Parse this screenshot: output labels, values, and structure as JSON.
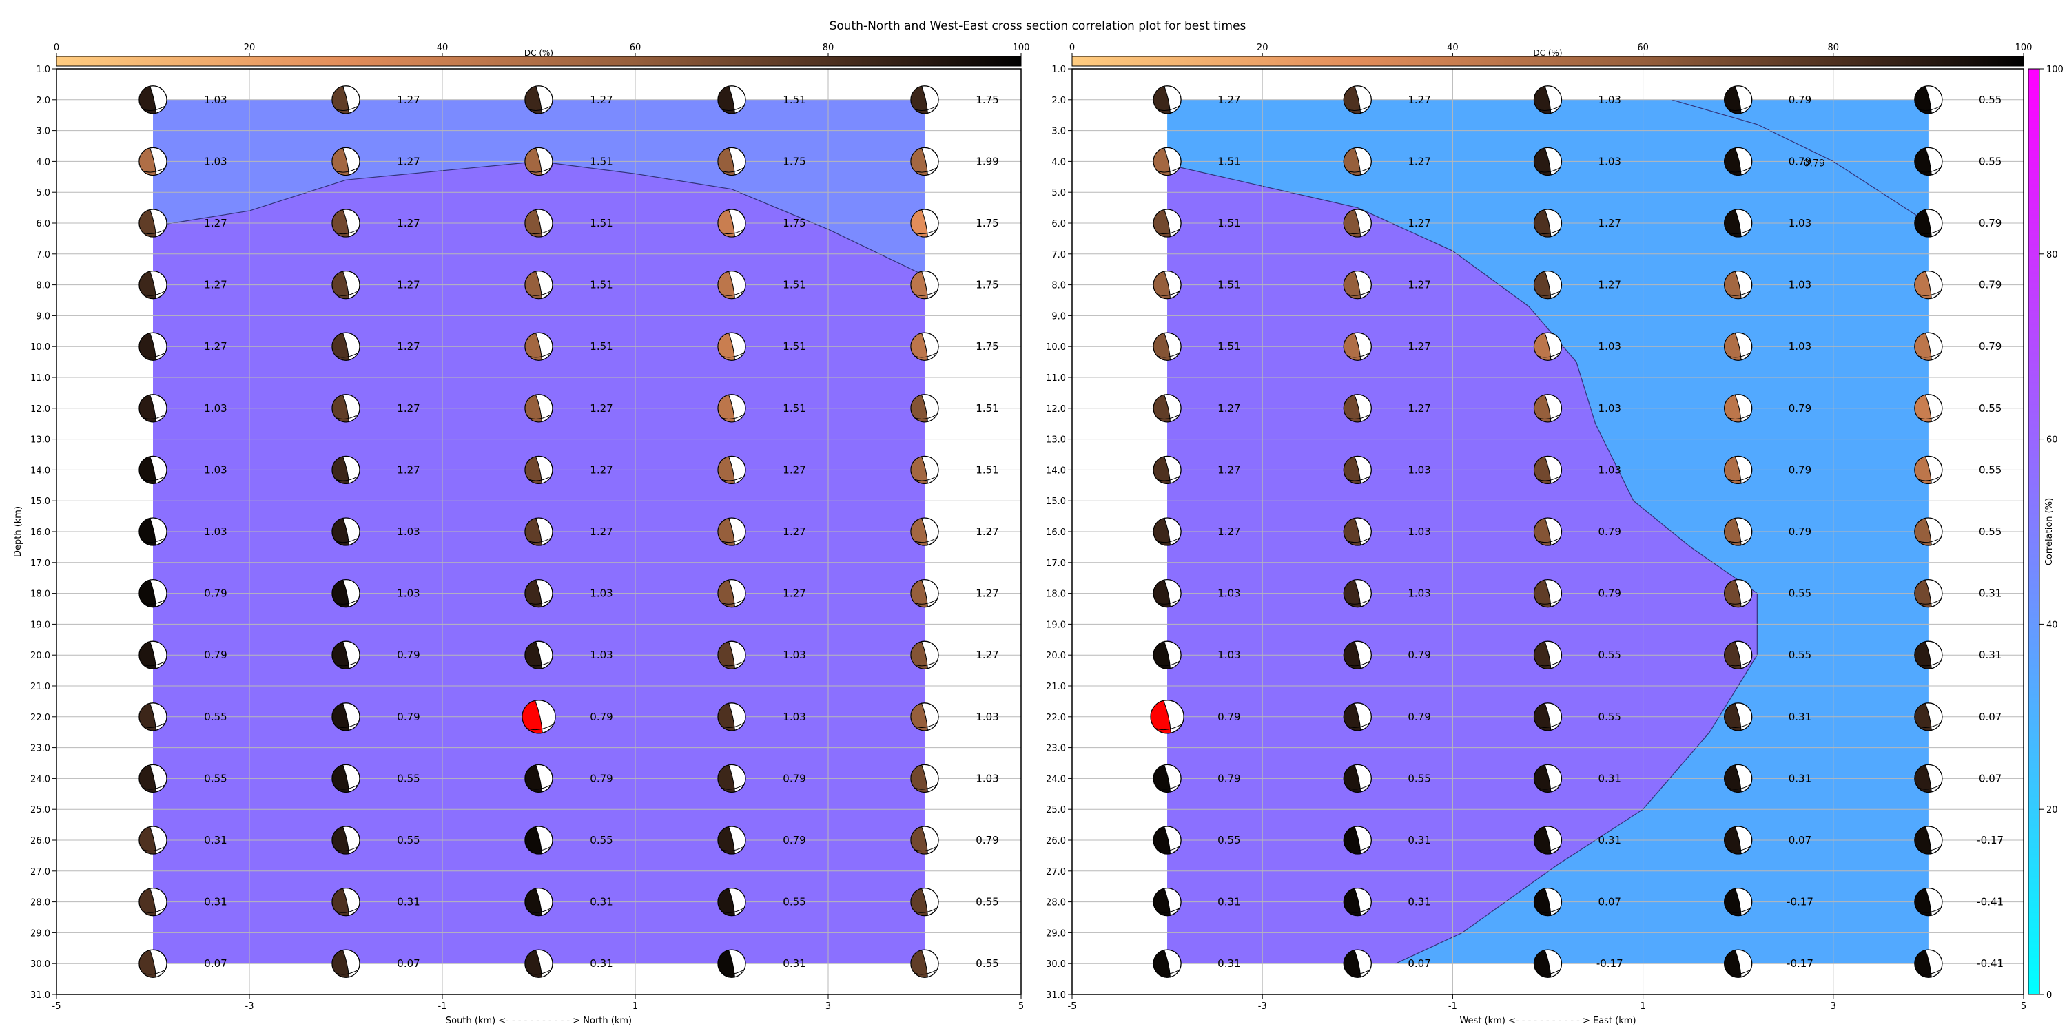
{
  "title": "South-North and West-East cross section correlation plot for best times",
  "colorbars": {
    "dc_label": "DC (%)",
    "dc_ticks": [
      "0",
      "20",
      "40",
      "60",
      "80",
      "100"
    ],
    "corr_label": "Correlation (%)",
    "corr_ticks": [
      "0",
      "20",
      "40",
      "60",
      "80",
      "100"
    ]
  },
  "colors": {
    "highlight_beachball": "#ff0000",
    "correlation_colormap": "cool",
    "dc_colormap": "copper_r"
  },
  "chart_data": [
    {
      "type": "heatmap",
      "panel": "south-north",
      "xlabel": "South (km) <- - - - - - - - - - - > North (km)",
      "ylabel": "Depth (km)",
      "xlim": [
        -5,
        5
      ],
      "ylim": [
        31,
        1
      ],
      "y_inverted": true,
      "x_ticks": [
        "-5",
        "-3",
        "-1",
        "1",
        "3",
        "5"
      ],
      "y_ticks": [
        "1.0",
        "2.0",
        "3.0",
        "4.0",
        "5.0",
        "6.0",
        "7.0",
        "8.0",
        "9.0",
        "10.0",
        "11.0",
        "12.0",
        "13.0",
        "14.0",
        "15.0",
        "16.0",
        "17.0",
        "18.0",
        "19.0",
        "20.0",
        "21.0",
        "22.0",
        "23.0",
        "24.0",
        "25.0",
        "26.0",
        "27.0",
        "28.0",
        "29.0",
        "30.0",
        "31.0"
      ],
      "grid": true,
      "x": [
        -4,
        -2,
        0,
        2,
        4
      ],
      "depths": [
        2,
        4,
        6,
        8,
        10,
        12,
        14,
        16,
        18,
        20,
        22,
        24,
        26,
        28,
        30
      ],
      "values": [
        [
          "1.03",
          "1.27",
          "1.27",
          "1.51",
          "1.75"
        ],
        [
          "1.03",
          "1.27",
          "1.51",
          "1.75",
          "1.99"
        ],
        [
          "1.27",
          "1.27",
          "1.51",
          "1.75",
          "1.75"
        ],
        [
          "1.27",
          "1.27",
          "1.51",
          "1.51",
          "1.75"
        ],
        [
          "1.27",
          "1.27",
          "1.51",
          "1.51",
          "1.75"
        ],
        [
          "1.03",
          "1.27",
          "1.27",
          "1.51",
          "1.51"
        ],
        [
          "1.03",
          "1.27",
          "1.27",
          "1.27",
          "1.51"
        ],
        [
          "1.03",
          "1.03",
          "1.27",
          "1.27",
          "1.27"
        ],
        [
          "0.79",
          "1.03",
          "1.03",
          "1.27",
          "1.27"
        ],
        [
          "0.79",
          "0.79",
          "1.03",
          "1.03",
          "1.27"
        ],
        [
          "0.55",
          "0.79",
          "0.79",
          "1.03",
          "1.03"
        ],
        [
          "0.55",
          "0.55",
          "0.79",
          "0.79",
          "1.03"
        ],
        [
          "0.31",
          "0.55",
          "0.55",
          "0.79",
          "0.79"
        ],
        [
          "0.31",
          "0.31",
          "0.31",
          "0.55",
          "0.55"
        ],
        [
          "0.07",
          "0.07",
          "0.31",
          "0.31",
          "0.55"
        ]
      ],
      "dc_percent": [
        [
          90,
          75,
          85,
          90,
          85
        ],
        [
          50,
          55,
          55,
          60,
          55
        ],
        [
          75,
          70,
          65,
          40,
          30
        ],
        [
          85,
          75,
          60,
          45,
          45
        ],
        [
          90,
          80,
          55,
          40,
          45
        ],
        [
          90,
          75,
          60,
          45,
          65
        ],
        [
          95,
          85,
          70,
          55,
          55
        ],
        [
          97,
          90,
          75,
          60,
          55
        ],
        [
          97,
          95,
          85,
          65,
          60
        ],
        [
          93,
          93,
          90,
          75,
          65
        ],
        [
          85,
          93,
          0,
          80,
          60
        ],
        [
          90,
          93,
          95,
          85,
          70
        ],
        [
          80,
          90,
          97,
          90,
          70
        ],
        [
          80,
          80,
          95,
          93,
          75
        ],
        [
          80,
          85,
          90,
          97,
          75
        ]
      ],
      "contour_path": [
        [
          -4,
          6.1
        ],
        [
          -3,
          5.6
        ],
        [
          -2,
          4.6
        ],
        [
          -1,
          4.3
        ],
        [
          0,
          4.0
        ],
        [
          1,
          4.4
        ],
        [
          2,
          4.9
        ],
        [
          3,
          6.2
        ],
        [
          4,
          7.7
        ]
      ],
      "region_fill_colors": [
        "#7b8bff",
        "#8b70ff"
      ],
      "highlight": {
        "x": 0,
        "depth": 22
      }
    },
    {
      "type": "heatmap",
      "panel": "west-east",
      "xlabel": "West (km) <- - - - - - - - - - - > East (km)",
      "ylabel": "",
      "xlim": [
        -5,
        5
      ],
      "ylim": [
        31,
        1
      ],
      "y_inverted": true,
      "x_ticks": [
        "-5",
        "-3",
        "-1",
        "1",
        "3",
        "5"
      ],
      "grid": true,
      "x": [
        -4,
        -2,
        0,
        2,
        4
      ],
      "depths": [
        2,
        4,
        6,
        8,
        10,
        12,
        14,
        16,
        18,
        20,
        22,
        24,
        26,
        28,
        30
      ],
      "values": [
        [
          "1.27",
          "1.27",
          "1.03",
          "0.79",
          "0.55"
        ],
        [
          "1.51",
          "1.27",
          "1.03",
          "0.79",
          "0.55"
        ],
        [
          "1.51",
          "1.27",
          "1.27",
          "1.03",
          "0.79"
        ],
        [
          "1.51",
          "1.27",
          "1.27",
          "1.03",
          "0.79"
        ],
        [
          "1.51",
          "1.27",
          "1.03",
          "1.03",
          "0.79"
        ],
        [
          "1.27",
          "1.27",
          "1.03",
          "0.79",
          "0.55"
        ],
        [
          "1.27",
          "1.03",
          "1.03",
          "0.79",
          "0.55"
        ],
        [
          "1.27",
          "1.03",
          "0.79",
          "0.79",
          "0.55"
        ],
        [
          "1.03",
          "1.03",
          "0.79",
          "0.55",
          "0.31"
        ],
        [
          "1.03",
          "0.79",
          "0.55",
          "0.55",
          "0.31"
        ],
        [
          "0.79",
          "0.79",
          "0.55",
          "0.31",
          "0.07"
        ],
        [
          "0.79",
          "0.55",
          "0.31",
          "0.31",
          "0.07"
        ],
        [
          "0.55",
          "0.31",
          "0.31",
          "0.07",
          "-0.17"
        ],
        [
          "0.31",
          "0.31",
          "0.07",
          "-0.17",
          "-0.41"
        ],
        [
          "0.31",
          "0.07",
          "-0.17",
          "-0.17",
          "-0.41"
        ]
      ],
      "dc_percent": [
        [
          85,
          80,
          90,
          95,
          97
        ],
        [
          55,
          60,
          90,
          95,
          97
        ],
        [
          70,
          65,
          80,
          95,
          97
        ],
        [
          60,
          60,
          75,
          55,
          45
        ],
        [
          65,
          50,
          45,
          50,
          45
        ],
        [
          75,
          70,
          60,
          45,
          40
        ],
        [
          80,
          75,
          70,
          50,
          45
        ],
        [
          85,
          75,
          65,
          60,
          60
        ],
        [
          90,
          85,
          75,
          70,
          70
        ],
        [
          95,
          90,
          85,
          80,
          90
        ],
        [
          0,
          90,
          90,
          85,
          85
        ],
        [
          97,
          93,
          93,
          93,
          90
        ],
        [
          97,
          97,
          95,
          93,
          95
        ],
        [
          97,
          97,
          97,
          97,
          97
        ],
        [
          97,
          97,
          97,
          97,
          97
        ]
      ],
      "contour_path": [
        [
          -4,
          4.1
        ],
        [
          -2,
          5.5
        ],
        [
          -1,
          6.9
        ],
        [
          -0.2,
          8.7
        ],
        [
          0.3,
          10.5
        ],
        [
          0.5,
          12.5
        ],
        [
          0.9,
          15.0
        ],
        [
          1.5,
          16.5
        ],
        [
          2.2,
          18.0
        ],
        [
          2.2,
          20.0
        ],
        [
          1.7,
          22.5
        ],
        [
          1,
          25.0
        ],
        [
          0.1,
          26.8
        ],
        [
          -0.9,
          29.0
        ],
        [
          -1.6,
          30.0
        ]
      ],
      "region_fill_colors": [
        "#52a9ff",
        "#8b70ff"
      ],
      "highlight": {
        "x": -4,
        "depth": 22
      }
    }
  ]
}
